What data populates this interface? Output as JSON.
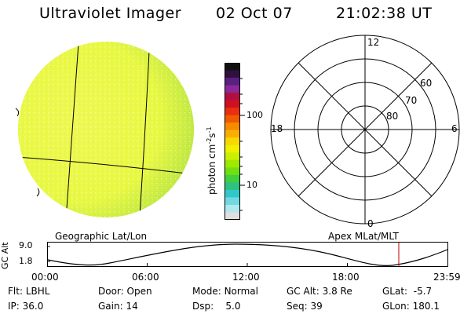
{
  "header": {
    "title": "Ultraviolet Imager",
    "date": "02 Oct 07",
    "time": "21:02:38 UT"
  },
  "colorbar": {
    "label": "photon cm",
    "label_exp1": "-2",
    "label_mid": "s",
    "label_exp2": "-1",
    "tick_labels": [
      "100",
      "10"
    ],
    "tick_values": [
      100,
      10
    ],
    "colors": [
      "#101010",
      "#301040",
      "#5a2080",
      "#8a2a9a",
      "#b01040",
      "#d01020",
      "#e83010",
      "#f05a00",
      "#f88a00",
      "#f8b000",
      "#f8d800",
      "#f0f000",
      "#c8f000",
      "#a0e800",
      "#70e010",
      "#40d040",
      "#30c080",
      "#30c8c8",
      "#70d8e0",
      "#b0e8f0",
      "#e0e0e0"
    ]
  },
  "geo_panel": {
    "label": "Geographic Lat/Lon",
    "fill_color": "#e8f840",
    "fill_edge_color": "#c0e840"
  },
  "polar_panel": {
    "label": "Apex MLat/MLT",
    "mlt_labels": {
      "top": "12",
      "bottom": "0",
      "left": "18",
      "right": "6"
    },
    "lat_labels": [
      "60",
      "70",
      "80"
    ]
  },
  "altitude_plot": {
    "ylabel": "GC Alt",
    "ytick_labels": [
      "9.0",
      "1.8"
    ],
    "xtick_labels": [
      "00:00",
      "06:00",
      "12:00",
      "18:00",
      "23:59"
    ],
    "marker_color": "#c00000"
  },
  "info": {
    "row1": [
      {
        "label": "Flt:",
        "value": "LBHL"
      },
      {
        "label": "Door:",
        "value": "Open"
      },
      {
        "label": "Mode:",
        "value": "Normal"
      },
      {
        "label": "GC Alt:",
        "value": "3.8 Re"
      },
      {
        "label": "GLat:",
        "value": "-5.7"
      }
    ],
    "row2": [
      {
        "label": "IP:",
        "value": "36.0"
      },
      {
        "label": "Gain:",
        "value": "14"
      },
      {
        "label": "Dsp:",
        "value": "5.0"
      },
      {
        "label": "Seq:",
        "value": "39"
      },
      {
        "label": "GLon:",
        "value": "180.1"
      }
    ]
  }
}
